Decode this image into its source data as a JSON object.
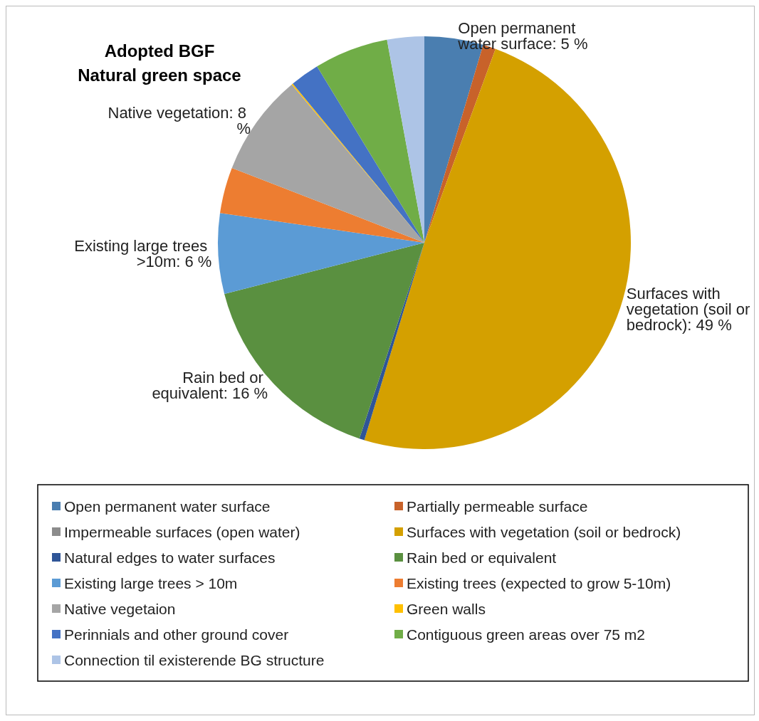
{
  "chart_data": {
    "type": "pie",
    "title": "Adopted BGF\nNatural green space",
    "categories": [
      "Open permanent water surface",
      "Partially permeable surface",
      "Impermeable surfaces (open water)",
      "Surfaces with vegetation (soil or bedrock)",
      "Natural edges to water surfaces",
      "Rain bed or equivalent",
      "Existing large trees > 10m",
      "Existing trees (expected to grow 5-10m)",
      "Native vegetaion",
      "Green walls",
      "Perinnials and other ground cover",
      "Contiguous green areas over 75 m2",
      "Connection til existerende BG structure"
    ],
    "values": [
      4.6,
      1.0,
      0,
      49.1,
      0.4,
      15.9,
      6.3,
      3.6,
      8.0,
      0.1,
      2.3,
      5.8,
      2.9
    ],
    "value_labels": [
      "Open permanent water surface: 5 %",
      null,
      null,
      "Surfaces with vegetation (soil or bedrock): 49 %",
      null,
      "Rain bed or equivalent: 16 %",
      "Existing large trees >10m: 6 %",
      null,
      "Native vegetation: 8 %",
      null,
      null,
      null,
      null
    ],
    "colors": [
      "#4a7eb0",
      "#c8622a",
      "#8c8c8c",
      "#d4a000",
      "#2f5597",
      "#5a9040",
      "#5b9bd5",
      "#ed7d31",
      "#a5a5a5",
      "#ffc000",
      "#4472c4",
      "#70ad47",
      "#adc4e6"
    ],
    "legend": "bottom"
  }
}
